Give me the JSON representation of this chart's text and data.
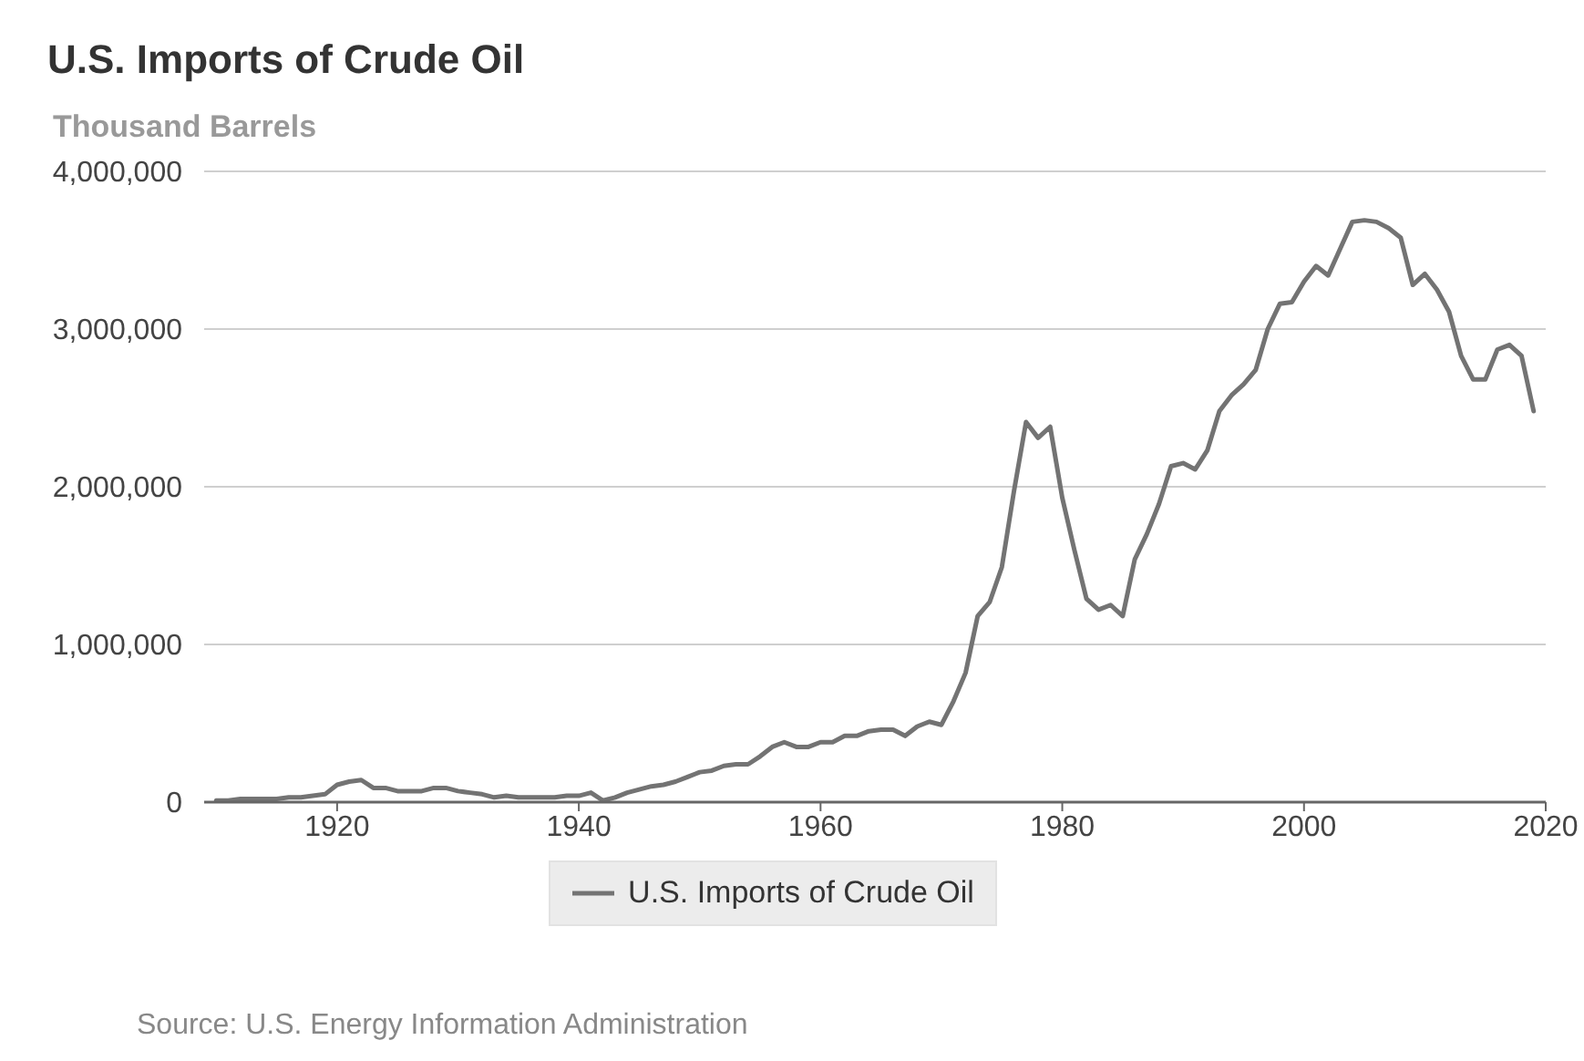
{
  "chart_data": {
    "type": "line",
    "title": "U.S. Imports of Crude Oil",
    "ylabel": "Thousand Barrels",
    "annotations": [
      "Source: U.S. Energy Information Administration"
    ],
    "x": [
      1910,
      1911,
      1912,
      1913,
      1914,
      1915,
      1916,
      1917,
      1918,
      1919,
      1920,
      1921,
      1922,
      1923,
      1924,
      1925,
      1926,
      1927,
      1928,
      1929,
      1930,
      1931,
      1932,
      1933,
      1934,
      1935,
      1936,
      1937,
      1938,
      1939,
      1940,
      1941,
      1942,
      1943,
      1944,
      1945,
      1946,
      1947,
      1948,
      1949,
      1950,
      1951,
      1952,
      1953,
      1954,
      1955,
      1956,
      1957,
      1958,
      1959,
      1960,
      1961,
      1962,
      1963,
      1964,
      1965,
      1966,
      1967,
      1968,
      1969,
      1970,
      1971,
      1972,
      1973,
      1974,
      1975,
      1976,
      1977,
      1978,
      1979,
      1980,
      1981,
      1982,
      1983,
      1984,
      1985,
      1986,
      1987,
      1988,
      1989,
      1990,
      1991,
      1992,
      1993,
      1994,
      1995,
      1996,
      1997,
      1998,
      1999,
      2000,
      2001,
      2002,
      2003,
      2004,
      2005,
      2006,
      2007,
      2008,
      2009,
      2010,
      2011,
      2012,
      2013,
      2014,
      2015,
      2016,
      2017,
      2018,
      2019
    ],
    "series": [
      {
        "name": "U.S. Imports of Crude Oil",
        "color": "#737373",
        "values": [
          10000,
          10000,
          20000,
          20000,
          20000,
          20000,
          30000,
          30000,
          40000,
          50000,
          110000,
          130000,
          140000,
          90000,
          90000,
          70000,
          70000,
          70000,
          90000,
          90000,
          70000,
          60000,
          50000,
          30000,
          40000,
          30000,
          30000,
          30000,
          30000,
          40000,
          40000,
          60000,
          10000,
          30000,
          60000,
          80000,
          100000,
          110000,
          130000,
          160000,
          190000,
          200000,
          230000,
          240000,
          240000,
          290000,
          350000,
          380000,
          350000,
          350000,
          380000,
          380000,
          420000,
          420000,
          450000,
          460000,
          460000,
          420000,
          480000,
          510000,
          490000,
          640000,
          820000,
          1180000,
          1270000,
          1490000,
          1970000,
          2410000,
          2310000,
          2380000,
          1930000,
          1600000,
          1290000,
          1220000,
          1250000,
          1180000,
          1540000,
          1700000,
          1890000,
          2130000,
          2150000,
          2110000,
          2230000,
          2480000,
          2580000,
          2650000,
          2740000,
          3000000,
          3160000,
          3170000,
          3300000,
          3400000,
          3340000,
          3510000,
          3680000,
          3690000,
          3680000,
          3640000,
          3580000,
          3280000,
          3350000,
          3250000,
          3110000,
          2830000,
          2680000,
          2680000,
          2870000,
          2900000,
          2830000,
          2480000
        ]
      }
    ],
    "xlim": [
      1909,
      2020
    ],
    "xticks": [
      1920,
      1940,
      1960,
      1980,
      2000,
      2020
    ],
    "ylim": [
      0,
      4000000
    ],
    "yticks": [
      0,
      {
        "value": 1000000,
        "label": "1,000,000"
      },
      {
        "value": 2000000,
        "label": "2,000,000"
      },
      {
        "value": 3000000,
        "label": "3,000,000"
      },
      {
        "value": 4000000,
        "label": "4,000,000"
      }
    ],
    "grid": "y",
    "legend": "bottom",
    "marker": "none",
    "line_style": "solid"
  }
}
